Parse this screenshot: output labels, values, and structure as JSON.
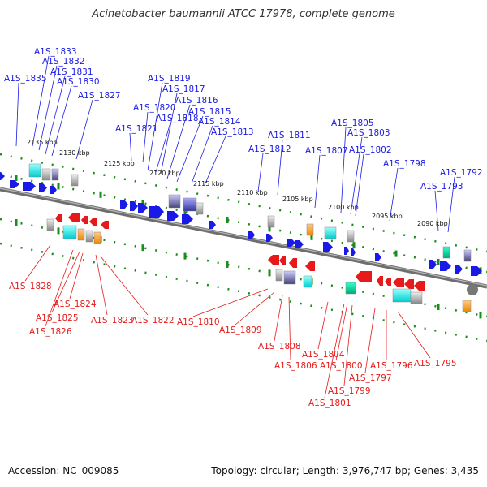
{
  "title": "Acinetobacter baumannii ATCC 17978, complete genome",
  "footer": {
    "accession": "Accession: NC_009085",
    "stats": "Topology: circular; Length: 3,976,747 bp; Genes: 3,435"
  },
  "colors": {
    "forward_gene": "#1a1ae6",
    "reverse_gene": "#e61a1a",
    "backbone": "#808080",
    "ruler": "#1a8c1a"
  },
  "kbp_labels": [
    "2135 kbp",
    "2130 kbp",
    "2125 kbp",
    "2120 kbp",
    "2115 kbp",
    "2110 kbp",
    "2105 kbp",
    "2100 kbp",
    "2095 kbp",
    "2090 kbp"
  ],
  "forward_genes": [
    "A1S_1835",
    "A1S_1833",
    "A1S_1832",
    "A1S_1831",
    "A1S_1830",
    "A1S_1827",
    "A1S_1821",
    "A1S_1820",
    "A1S_1819",
    "A1S_1818",
    "A1S_1817",
    "A1S_1816",
    "A1S_1815",
    "A1S_1814",
    "A1S_1813",
    "A1S_1812",
    "A1S_1811",
    "A1S_1807",
    "A1S_1805",
    "A1S_1803",
    "A1S_1802",
    "A1S_1798",
    "A1S_1793",
    "A1S_1792"
  ],
  "reverse_genes": [
    "A1S_1828",
    "A1S_1826",
    "A1S_1825",
    "A1S_1824",
    "A1S_1823",
    "A1S_1822",
    "A1S_1810",
    "A1S_1809",
    "A1S_1808",
    "A1S_1806",
    "A1S_1804",
    "A1S_1801",
    "A1S_1800",
    "A1S_1799",
    "A1S_1797",
    "A1S_1796",
    "A1S_1795"
  ]
}
